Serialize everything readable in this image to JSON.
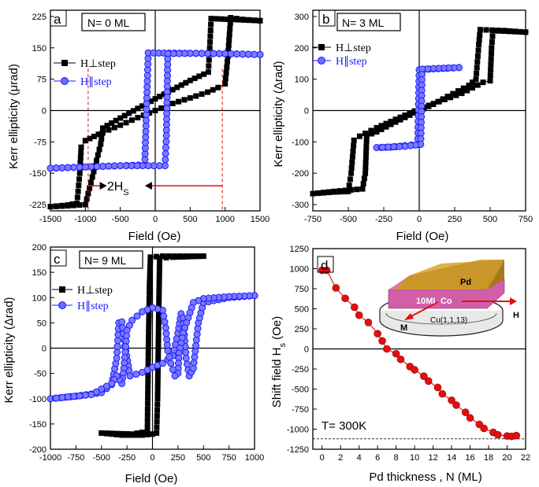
{
  "colors": {
    "perp": "#000000",
    "para": "#1a1aff",
    "shift": "#e01010",
    "guide": "#e01010",
    "inset_pd": "#d4a02a",
    "inset_co": "#d35ea8"
  },
  "chart_data": [
    {
      "panel": "a",
      "type": "line",
      "label_box": "N= 0 ML",
      "xlabel": "Field (Oe)",
      "ylabel": "Kerr ellipticity (μrad)",
      "xlim": [
        -1500,
        1500
      ],
      "ylim": [
        -240,
        240
      ],
      "xticks": [
        -1500,
        -1000,
        -500,
        0,
        500,
        1000,
        1500
      ],
      "yticks": [
        -225,
        -150,
        -75,
        0,
        75,
        150,
        225
      ],
      "annotation": "2H",
      "annotation_sub": "S",
      "guide_lines_x": [
        -960,
        960
      ],
      "series": [
        {
          "name": "H⊥step",
          "style": "square",
          "color": "#000000",
          "points": [
            [
              -1500,
              -230
            ],
            [
              -1250,
              -226
            ],
            [
              -1120,
              -222
            ],
            [
              -1080,
              -150
            ],
            [
              -1060,
              -88
            ],
            [
              -1000,
              -72
            ],
            [
              -750,
              -52
            ],
            [
              -500,
              -35
            ],
            [
              -250,
              -17
            ],
            [
              0,
              0
            ],
            [
              250,
              17
            ],
            [
              500,
              30
            ],
            [
              750,
              44
            ],
            [
              900,
              55
            ],
            [
              1000,
              64
            ],
            [
              1040,
              130
            ],
            [
              1080,
              222
            ],
            [
              1250,
              218
            ],
            [
              1500,
              215
            ],
            [
              1500,
              215
            ],
            [
              800,
              220
            ],
            [
              780,
              150
            ],
            [
              760,
              92
            ],
            [
              500,
              72
            ],
            [
              250,
              50
            ],
            [
              0,
              28
            ],
            [
              -250,
              5
            ],
            [
              -500,
              -18
            ],
            [
              -750,
              -42
            ],
            [
              -780,
              -80
            ],
            [
              -1000,
              -225
            ],
            [
              -1250,
              -228
            ],
            [
              -1500,
              -230
            ]
          ]
        },
        {
          "name": "H∥step",
          "style": "circle",
          "color": "#1a1aff",
          "points": [
            [
              -1500,
              -138
            ],
            [
              -1000,
              -135
            ],
            [
              -500,
              -132
            ],
            [
              -150,
              -130
            ],
            [
              -120,
              30
            ],
            [
              -100,
              138
            ],
            [
              500,
              137
            ],
            [
              1000,
              136
            ],
            [
              1500,
              134
            ],
            [
              1500,
              134
            ],
            [
              1000,
              136
            ],
            [
              500,
              137
            ],
            [
              180,
              136
            ],
            [
              160,
              -60
            ],
            [
              140,
              -132
            ],
            [
              -500,
              -132
            ],
            [
              -1000,
              -135
            ],
            [
              -1500,
              -138
            ]
          ]
        }
      ]
    },
    {
      "panel": "b",
      "type": "line",
      "label_box": "N= 3 ML",
      "xlabel": "Field (Oe)",
      "ylabel": "Kerr ellipticity (Δrad)",
      "xlim": [
        -750,
        750
      ],
      "ylim": [
        -320,
        320
      ],
      "xticks": [
        -750,
        -500,
        -250,
        0,
        250,
        500,
        750
      ],
      "yticks": [
        -300,
        -200,
        -100,
        0,
        100,
        200,
        300
      ],
      "series": [
        {
          "name": "H⊥step",
          "style": "square",
          "color": "#000000",
          "points": [
            [
              -750,
              -265
            ],
            [
              -600,
              -258
            ],
            [
              -400,
              -250
            ],
            [
              -380,
              -200
            ],
            [
              -370,
              -80
            ],
            [
              -300,
              -68
            ],
            [
              -200,
              -44
            ],
            [
              -100,
              -22
            ],
            [
              0,
              0
            ],
            [
              100,
              20
            ],
            [
              200,
              45
            ],
            [
              350,
              80
            ],
            [
              400,
              100
            ],
            [
              420,
              210
            ],
            [
              430,
              258
            ],
            [
              600,
              255
            ],
            [
              750,
              250
            ],
            [
              750,
              250
            ],
            [
              520,
              255
            ],
            [
              510,
              200
            ],
            [
              500,
              95
            ],
            [
              450,
              90
            ],
            [
              300,
              55
            ],
            [
              100,
              22
            ],
            [
              0,
              5
            ],
            [
              -100,
              -15
            ],
            [
              -300,
              -55
            ],
            [
              -420,
              -82
            ],
            [
              -460,
              -95
            ],
            [
              -480,
              -200
            ],
            [
              -500,
              -258
            ],
            [
              -600,
              -260
            ],
            [
              -750,
              -265
            ]
          ]
        },
        {
          "name": "H∥step",
          "style": "circle",
          "color": "#1a1aff",
          "points": [
            [
              -300,
              -118
            ],
            [
              -200,
              -117
            ],
            [
              -100,
              -112
            ],
            [
              -10,
              -108
            ],
            [
              -5,
              20
            ],
            [
              0,
              130
            ],
            [
              100,
              133
            ],
            [
              200,
              135
            ],
            [
              280,
              137
            ],
            [
              280,
              137
            ],
            [
              100,
              134
            ],
            [
              20,
              132
            ],
            [
              15,
              -20
            ],
            [
              10,
              -108
            ],
            [
              -100,
              -114
            ],
            [
              -300,
              -118
            ]
          ]
        }
      ]
    },
    {
      "panel": "c",
      "type": "line",
      "label_box": "N= 9 ML",
      "xlabel": "Field (Oe)",
      "ylabel": "Kerr ellipticity (Δrad)",
      "xlim": [
        -1000,
        1000
      ],
      "ylim": [
        -200,
        200
      ],
      "xticks": [
        -1000,
        -750,
        -500,
        -250,
        0,
        250,
        500,
        750,
        1000
      ],
      "yticks": [
        -200,
        -150,
        -100,
        -50,
        0,
        50,
        100,
        150,
        200
      ],
      "series": [
        {
          "name": "H⊥step",
          "style": "square",
          "color": "#000000",
          "points": [
            [
              -500,
              -168
            ],
            [
              -300,
              -172
            ],
            [
              -100,
              -172
            ],
            [
              0,
              -170
            ],
            [
              40,
              -168
            ],
            [
              50,
              -100
            ],
            [
              60,
              50
            ],
            [
              70,
              178
            ],
            [
              200,
              180
            ],
            [
              500,
              182
            ],
            [
              500,
              182
            ],
            [
              100,
              182
            ],
            [
              -20,
              180
            ],
            [
              -30,
              120
            ],
            [
              -40,
              0
            ],
            [
              -50,
              -165
            ],
            [
              -200,
              -170
            ],
            [
              -500,
              -168
            ]
          ]
        },
        {
          "name": "H∥step",
          "style": "circle",
          "color": "#1a1aff",
          "points": [
            [
              -1000,
              -100
            ],
            [
              -750,
              -95
            ],
            [
              -500,
              -88
            ],
            [
              -400,
              -72
            ],
            [
              -350,
              -20
            ],
            [
              -330,
              50
            ],
            [
              -300,
              52
            ],
            [
              -270,
              5
            ],
            [
              -220,
              -55
            ],
            [
              -100,
              -48
            ],
            [
              0,
              -38
            ],
            [
              100,
              -30
            ],
            [
              200,
              -15
            ],
            [
              250,
              30
            ],
            [
              280,
              68
            ],
            [
              300,
              60
            ],
            [
              330,
              -20
            ],
            [
              360,
              -55
            ],
            [
              400,
              -40
            ],
            [
              450,
              50
            ],
            [
              500,
              90
            ],
            [
              750,
              100
            ],
            [
              1000,
              104
            ],
            [
              1000,
              104
            ],
            [
              750,
              102
            ],
            [
              500,
              98
            ],
            [
              400,
              90
            ],
            [
              300,
              30
            ],
            [
              260,
              -10
            ],
            [
              250,
              -50
            ],
            [
              220,
              -55
            ],
            [
              180,
              -30
            ],
            [
              150,
              -5
            ],
            [
              130,
              40
            ],
            [
              100,
              75
            ],
            [
              0,
              80
            ],
            [
              -100,
              72
            ],
            [
              -200,
              55
            ],
            [
              -250,
              35
            ],
            [
              -280,
              -40
            ],
            [
              -300,
              -70
            ],
            [
              -350,
              -55
            ],
            [
              -400,
              -70
            ],
            [
              -600,
              -92
            ],
            [
              -1000,
              -100
            ]
          ]
        }
      ]
    },
    {
      "panel": "d",
      "type": "scatter",
      "xlabel": "Pd thickness , N (ML)",
      "ylabel": "Shift field H",
      "ylabel_sub": "s",
      "ylabel_unit": " (Oe)",
      "annotation": "T= 300K",
      "xlim": [
        -1,
        22
      ],
      "ylim": [
        -1250,
        1250
      ],
      "xticks": [
        0,
        2,
        4,
        6,
        8,
        10,
        12,
        14,
        16,
        18,
        20,
        22
      ],
      "yticks": [
        -1250,
        -1000,
        -750,
        -500,
        -250,
        0,
        250,
        500,
        750,
        1000,
        1250
      ],
      "dashed_y": -1120,
      "series": [
        {
          "name": "",
          "style": "ball",
          "color": "#e01010",
          "points": [
            [
              0,
              980
            ],
            [
              0.5,
              980
            ],
            [
              1.5,
              760
            ],
            [
              2.5,
              630
            ],
            [
              3.5,
              520
            ],
            [
              4,
              420
            ],
            [
              5,
              330
            ],
            [
              6,
              190
            ],
            [
              6.5,
              100
            ],
            [
              7,
              0
            ],
            [
              8,
              -60
            ],
            [
              8.5,
              -130
            ],
            [
              9.5,
              -220
            ],
            [
              10,
              -260
            ],
            [
              11,
              -340
            ],
            [
              11.5,
              -400
            ],
            [
              12.5,
              -480
            ],
            [
              13,
              -560
            ],
            [
              14,
              -640
            ],
            [
              14.5,
              -700
            ],
            [
              15.5,
              -790
            ],
            [
              16,
              -860
            ],
            [
              17,
              -940
            ],
            [
              17.5,
              -990
            ],
            [
              18.5,
              -1040
            ],
            [
              19,
              -1070
            ],
            [
              20,
              -1085
            ],
            [
              20.5,
              -1090
            ],
            [
              21,
              -1080
            ]
          ]
        }
      ],
      "inset": {
        "top_label": "Pd",
        "mid_label": "10ML Co",
        "substrate_label": "Cu(1,1,13)",
        "h_label": "H",
        "m_label": "M"
      }
    }
  ]
}
